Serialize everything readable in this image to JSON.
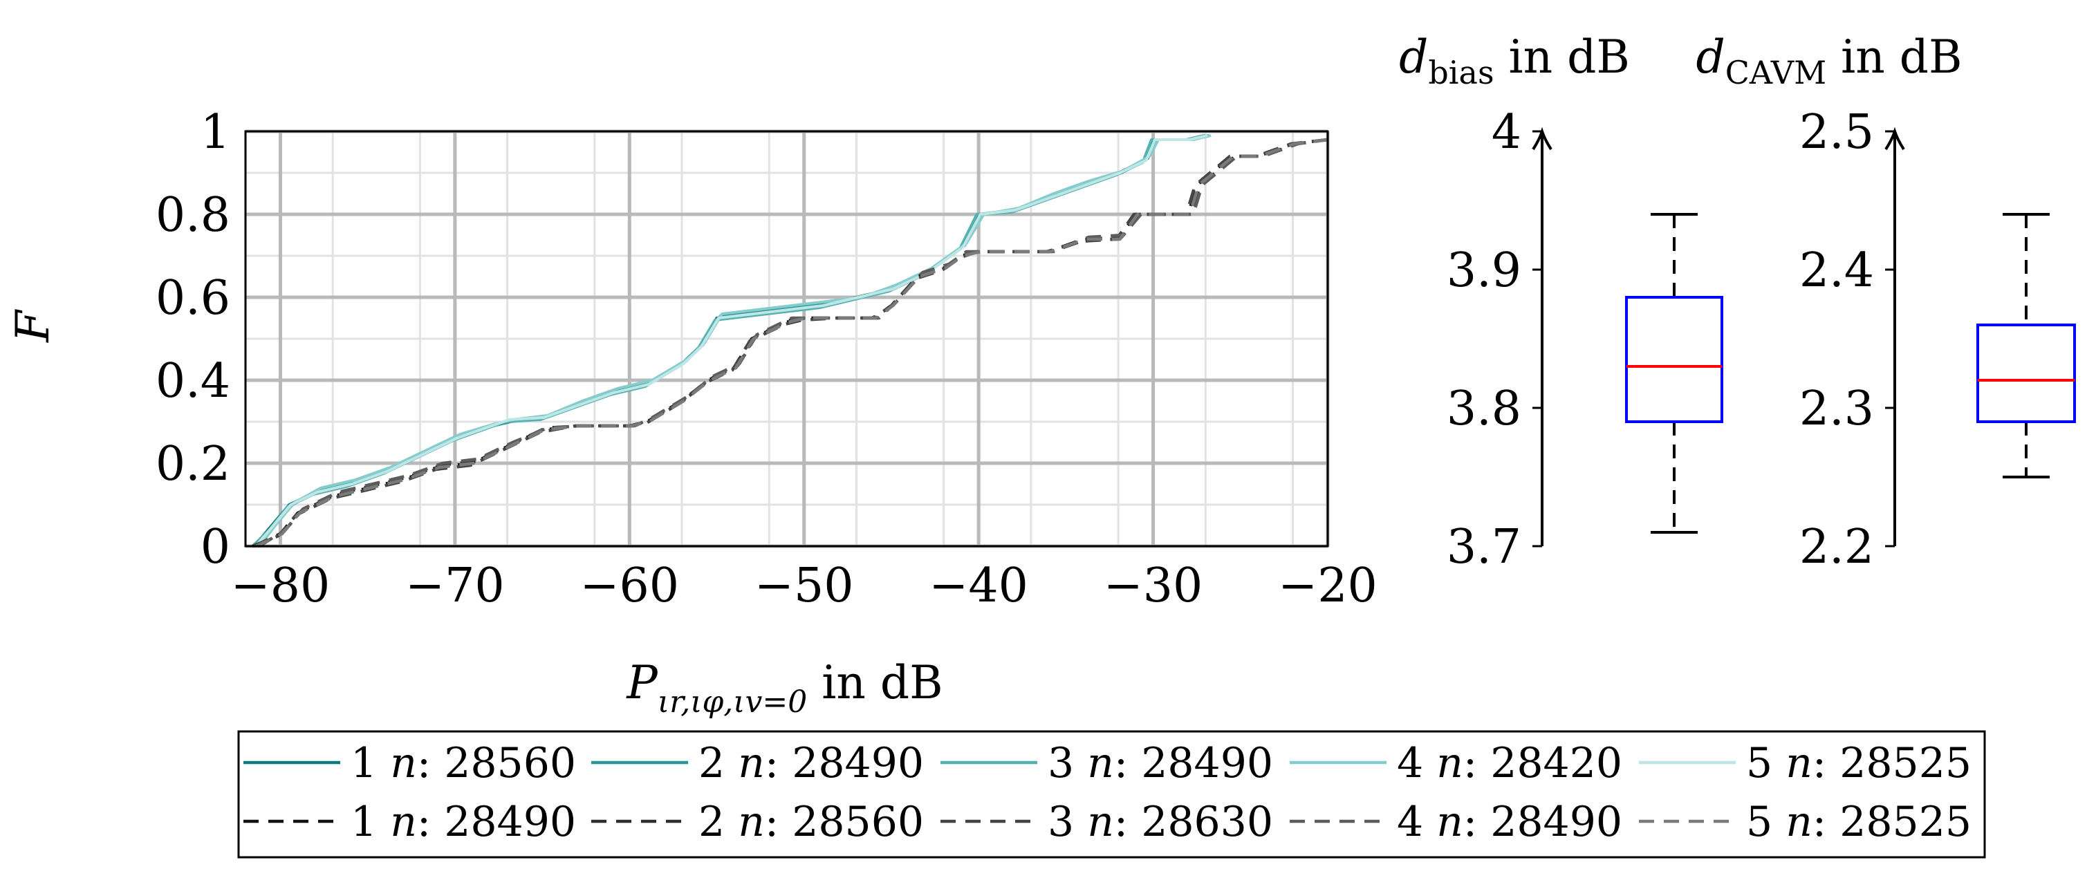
{
  "chart_data": [
    {
      "type": "line",
      "xlabel": "P_{ιr,ιφ,ιv=0} in dB",
      "xlabel_parts": {
        "main": "P",
        "sub": "ιr,ιφ,ιv=0",
        "suffix": " in dB"
      },
      "ylabel": "F",
      "xlim": [
        -82,
        -20
      ],
      "ylim": [
        0,
        1
      ],
      "xticks": [
        -80,
        -70,
        -60,
        -50,
        -40,
        -30,
        -20
      ],
      "xtick_labels": [
        "−80",
        "−70",
        "−60",
        "−50",
        "−40",
        "−30",
        "−20"
      ],
      "yticks": [
        0,
        0.2,
        0.4,
        0.6,
        0.8,
        1
      ],
      "ytick_labels": [
        "0",
        "0.2",
        "0.4",
        "0.6",
        "0.8",
        "1"
      ],
      "grid": true,
      "legend_position": "bottom",
      "series": [
        {
          "name": "1 n: 28560",
          "name_parts": [
            "1 ",
            "n",
            ": 28560"
          ],
          "style": "solid",
          "color": "#0e7a7a",
          "x": [
            -81.5,
            -80.5,
            -79.5,
            -78,
            -76,
            -74,
            -72,
            -70,
            -68,
            -67,
            -65,
            -63,
            -61,
            -59,
            -57,
            -56,
            -55,
            -53,
            -51,
            -49,
            -47,
            -45,
            -43,
            -41,
            -40,
            -38,
            -36,
            -34,
            -32,
            -30.5,
            -30,
            -28,
            -27
          ],
          "y": [
            0,
            0.05,
            0.1,
            0.13,
            0.15,
            0.18,
            0.22,
            0.26,
            0.29,
            0.3,
            0.31,
            0.34,
            0.37,
            0.39,
            0.44,
            0.48,
            0.55,
            0.56,
            0.57,
            0.58,
            0.6,
            0.62,
            0.66,
            0.72,
            0.8,
            0.81,
            0.84,
            0.87,
            0.9,
            0.93,
            0.98,
            0.98,
            0.99
          ]
        },
        {
          "name": "2 n: 28490",
          "name_parts": [
            "2 ",
            "n",
            ": 28490"
          ],
          "style": "solid",
          "color": "#2a9595",
          "x": [
            -81.3,
            -80.3,
            -79.3,
            -77.8,
            -75.8,
            -73.8,
            -71.8,
            -69.8,
            -67.8,
            -66.8,
            -64.8,
            -62.8,
            -60.8,
            -58.8,
            -56.8,
            -55.8,
            -54.8,
            -52.8,
            -50.8,
            -48.8,
            -46.8,
            -44.8,
            -42.8,
            -40.8,
            -39.8,
            -37.8,
            -35.8,
            -33.8,
            -31.8,
            -30.3,
            -29.8,
            -27.8,
            -26.8
          ],
          "y": [
            0,
            0.05,
            0.1,
            0.135,
            0.155,
            0.185,
            0.225,
            0.265,
            0.29,
            0.3,
            0.31,
            0.345,
            0.375,
            0.395,
            0.445,
            0.485,
            0.555,
            0.565,
            0.575,
            0.585,
            0.6,
            0.625,
            0.665,
            0.725,
            0.8,
            0.81,
            0.845,
            0.875,
            0.9,
            0.935,
            0.98,
            0.98,
            0.99
          ]
        },
        {
          "name": "3 n: 28490",
          "name_parts": [
            "3 ",
            "n",
            ": 28490"
          ],
          "style": "solid",
          "color": "#55b0b0",
          "x": [
            -81.6,
            -80.6,
            -79.6,
            -78.1,
            -76.1,
            -74.1,
            -72.1,
            -70.1,
            -68.1,
            -67.1,
            -65.1,
            -63.1,
            -61.1,
            -59.1,
            -57.1,
            -56.1,
            -55.1,
            -53.1,
            -51.1,
            -49.1,
            -47.1,
            -45.1,
            -43.1,
            -41.1,
            -40.1,
            -38.1,
            -36.1,
            -34.1,
            -32.1,
            -30.6,
            -30.1,
            -28.1,
            -27.1
          ],
          "y": [
            0,
            0.04,
            0.095,
            0.125,
            0.145,
            0.175,
            0.215,
            0.255,
            0.285,
            0.3,
            0.305,
            0.335,
            0.365,
            0.385,
            0.435,
            0.475,
            0.545,
            0.555,
            0.565,
            0.575,
            0.595,
            0.615,
            0.655,
            0.715,
            0.8,
            0.805,
            0.835,
            0.865,
            0.895,
            0.925,
            0.98,
            0.98,
            0.99
          ]
        },
        {
          "name": "4 n: 28420",
          "name_parts": [
            "4 ",
            "n",
            ": 28420"
          ],
          "style": "solid",
          "color": "#85cccc",
          "x": [
            -81.2,
            -80.2,
            -79.2,
            -77.7,
            -75.7,
            -73.7,
            -71.7,
            -69.7,
            -67.7,
            -66.7,
            -64.7,
            -62.7,
            -60.7,
            -58.7,
            -56.7,
            -55.7,
            -54.7,
            -52.7,
            -50.7,
            -48.7,
            -46.7,
            -44.7,
            -42.7,
            -40.7,
            -39.7,
            -37.7,
            -35.7,
            -33.7,
            -31.7,
            -30.2,
            -29.7,
            -27.7,
            -26.7
          ],
          "y": [
            0,
            0.055,
            0.105,
            0.14,
            0.16,
            0.19,
            0.23,
            0.27,
            0.295,
            0.305,
            0.315,
            0.35,
            0.38,
            0.4,
            0.45,
            0.49,
            0.56,
            0.57,
            0.58,
            0.59,
            0.6,
            0.63,
            0.67,
            0.73,
            0.8,
            0.815,
            0.85,
            0.88,
            0.905,
            0.94,
            0.98,
            0.98,
            0.99
          ]
        },
        {
          "name": "5 n: 28525",
          "name_parts": [
            "5 ",
            "n",
            ": 28525"
          ],
          "style": "solid",
          "color": "#bfe6e6",
          "x": [
            -81.4,
            -80.4,
            -79.4,
            -77.9,
            -75.9,
            -73.9,
            -71.9,
            -69.9,
            -67.9,
            -66.9,
            -64.9,
            -62.9,
            -60.9,
            -58.9,
            -56.9,
            -55.9,
            -54.9,
            -52.9,
            -50.9,
            -48.9,
            -46.9,
            -44.9,
            -42.9,
            -40.9,
            -39.9,
            -37.9,
            -35.9,
            -33.9,
            -31.9,
            -30.4,
            -29.9,
            -27.9,
            -26.9
          ],
          "y": [
            0,
            0.05,
            0.1,
            0.13,
            0.15,
            0.18,
            0.22,
            0.26,
            0.29,
            0.305,
            0.31,
            0.34,
            0.37,
            0.39,
            0.44,
            0.48,
            0.55,
            0.56,
            0.57,
            0.58,
            0.6,
            0.62,
            0.66,
            0.72,
            0.8,
            0.81,
            0.84,
            0.87,
            0.9,
            0.93,
            0.98,
            0.98,
            0.99
          ]
        },
        {
          "name": "1 n: 28490",
          "name_parts": [
            "1 ",
            "n",
            ": 28490"
          ],
          "style": "dashed",
          "color": "#111111",
          "x": [
            -81.5,
            -80,
            -79,
            -77,
            -75,
            -73,
            -71,
            -69,
            -67,
            -65,
            -63,
            -60,
            -59,
            -57,
            -55.5,
            -54,
            -53,
            -52,
            -51,
            -50,
            -48,
            -46,
            -45,
            -43.5,
            -42,
            -41,
            -40,
            -38,
            -36,
            -34,
            -32,
            -31,
            -30,
            -28,
            -27.5,
            -25.5,
            -24,
            -22,
            -20
          ],
          "y": [
            0,
            0.03,
            0.08,
            0.12,
            0.14,
            0.16,
            0.19,
            0.2,
            0.24,
            0.28,
            0.29,
            0.29,
            0.3,
            0.35,
            0.4,
            0.43,
            0.5,
            0.52,
            0.54,
            0.55,
            0.55,
            0.55,
            0.58,
            0.65,
            0.67,
            0.7,
            0.71,
            0.71,
            0.71,
            0.74,
            0.74,
            0.8,
            0.8,
            0.8,
            0.87,
            0.94,
            0.94,
            0.97,
            0.98
          ]
        },
        {
          "name": "2 n: 28560",
          "name_parts": [
            "2 ",
            "n",
            ": 28560"
          ],
          "style": "dashed",
          "color": "#2e2e2e",
          "x": [
            -81.3,
            -79.8,
            -78.8,
            -76.8,
            -74.8,
            -72.8,
            -70.8,
            -68.8,
            -66.8,
            -64.8,
            -62.8,
            -59.8,
            -58.8,
            -56.8,
            -55.3,
            -53.8,
            -52.8,
            -51.8,
            -50.8,
            -49.8,
            -47.8,
            -45.8,
            -44.8,
            -43.3,
            -41.8,
            -40.8,
            -39.8,
            -37.8,
            -35.8,
            -33.8,
            -31.8,
            -30.8,
            -29.8,
            -27.8,
            -27.3,
            -25.3,
            -23.8,
            -21.8,
            -20
          ],
          "y": [
            0,
            0.035,
            0.085,
            0.125,
            0.145,
            0.165,
            0.195,
            0.205,
            0.245,
            0.285,
            0.29,
            0.29,
            0.305,
            0.355,
            0.405,
            0.435,
            0.505,
            0.525,
            0.545,
            0.55,
            0.55,
            0.55,
            0.585,
            0.655,
            0.675,
            0.705,
            0.71,
            0.71,
            0.71,
            0.74,
            0.745,
            0.8,
            0.8,
            0.8,
            0.87,
            0.94,
            0.94,
            0.97,
            0.98
          ]
        },
        {
          "name": "3 n: 28630",
          "name_parts": [
            "3 ",
            "n",
            ": 28630"
          ],
          "style": "dashed",
          "color": "#454545",
          "x": [
            -81.6,
            -80.1,
            -79.1,
            -77.1,
            -75.1,
            -73.1,
            -71.1,
            -69.1,
            -67.1,
            -65.1,
            -63.1,
            -60.1,
            -59.1,
            -57.1,
            -55.6,
            -54.1,
            -53.1,
            -52.1,
            -51.1,
            -50.1,
            -48.1,
            -46.1,
            -45.1,
            -43.6,
            -42.1,
            -41.1,
            -40.1,
            -38.1,
            -36.1,
            -34.1,
            -32.1,
            -31.1,
            -30.1,
            -28.1,
            -27.6,
            -25.6,
            -24.1,
            -22.1,
            -20
          ],
          "y": [
            0,
            0.025,
            0.075,
            0.115,
            0.135,
            0.155,
            0.185,
            0.195,
            0.235,
            0.275,
            0.29,
            0.29,
            0.295,
            0.345,
            0.395,
            0.425,
            0.495,
            0.515,
            0.535,
            0.545,
            0.55,
            0.55,
            0.575,
            0.645,
            0.665,
            0.695,
            0.71,
            0.71,
            0.71,
            0.735,
            0.74,
            0.8,
            0.8,
            0.8,
            0.87,
            0.94,
            0.94,
            0.97,
            0.98
          ]
        },
        {
          "name": "4 n: 28490",
          "name_parts": [
            "4 ",
            "n",
            ": 28490"
          ],
          "style": "dashed",
          "color": "#5c5c5c",
          "x": [
            -81.2,
            -79.7,
            -78.7,
            -76.7,
            -74.7,
            -72.7,
            -70.7,
            -68.7,
            -66.7,
            -64.7,
            -62.7,
            -59.7,
            -58.7,
            -56.7,
            -55.2,
            -53.7,
            -52.7,
            -51.7,
            -50.7,
            -49.7,
            -47.7,
            -45.7,
            -44.7,
            -43.2,
            -41.7,
            -40.7,
            -39.7,
            -37.7,
            -35.7,
            -33.7,
            -31.7,
            -30.7,
            -29.7,
            -27.7,
            -27.2,
            -25.2,
            -23.7,
            -21.7,
            -20
          ],
          "y": [
            0,
            0.04,
            0.09,
            0.13,
            0.15,
            0.17,
            0.2,
            0.21,
            0.25,
            0.285,
            0.29,
            0.29,
            0.31,
            0.36,
            0.41,
            0.44,
            0.51,
            0.53,
            0.55,
            0.55,
            0.55,
            0.55,
            0.59,
            0.66,
            0.68,
            0.71,
            0.71,
            0.71,
            0.71,
            0.745,
            0.75,
            0.8,
            0.8,
            0.8,
            0.87,
            0.94,
            0.94,
            0.97,
            0.98
          ]
        },
        {
          "name": "5 n: 28525",
          "name_parts": [
            "5 ",
            "n",
            ": 28525"
          ],
          "style": "dashed",
          "color": "#7a7a7a",
          "x": [
            -81.4,
            -79.9,
            -78.9,
            -76.9,
            -74.9,
            -72.9,
            -70.9,
            -68.9,
            -66.9,
            -64.9,
            -62.9,
            -59.9,
            -58.9,
            -56.9,
            -55.4,
            -53.9,
            -52.9,
            -51.9,
            -50.9,
            -49.9,
            -47.9,
            -45.9,
            -44.9,
            -43.4,
            -41.9,
            -40.9,
            -39.9,
            -37.9,
            -35.9,
            -33.9,
            -31.9,
            -30.9,
            -29.9,
            -27.9,
            -27.4,
            -25.4,
            -23.9,
            -21.9,
            -20
          ],
          "y": [
            0,
            0.03,
            0.08,
            0.12,
            0.14,
            0.16,
            0.19,
            0.2,
            0.24,
            0.28,
            0.29,
            0.29,
            0.3,
            0.35,
            0.4,
            0.43,
            0.5,
            0.52,
            0.54,
            0.55,
            0.55,
            0.55,
            0.58,
            0.65,
            0.67,
            0.7,
            0.71,
            0.71,
            0.71,
            0.74,
            0.74,
            0.8,
            0.8,
            0.8,
            0.87,
            0.94,
            0.94,
            0.97,
            0.98
          ]
        }
      ]
    },
    {
      "type": "box",
      "title": "d_bias in dB",
      "title_parts": {
        "main": "d",
        "sub": "bias",
        "suffix": " in dB"
      },
      "ylim": [
        3.7,
        4.0
      ],
      "yticks": [
        3.7,
        3.8,
        3.9,
        4.0
      ],
      "ytick_labels": [
        "3.7",
        "3.8",
        "3.9",
        "4"
      ],
      "whisker_low": 3.71,
      "q1": 3.79,
      "median": 3.83,
      "q3": 3.88,
      "whisker_high": 3.94,
      "box_color": "#0000ff",
      "median_color": "#ff0000"
    },
    {
      "type": "box",
      "title": "d_CAVM in dB",
      "title_parts": {
        "main": "d",
        "sub": "CAVM",
        "suffix": " in dB"
      },
      "ylim": [
        2.2,
        2.5
      ],
      "yticks": [
        2.2,
        2.3,
        2.4,
        2.5
      ],
      "ytick_labels": [
        "2.2",
        "2.3",
        "2.4",
        "2.5"
      ],
      "whisker_low": 2.25,
      "q1": 2.29,
      "median": 2.32,
      "q3": 2.36,
      "whisker_high": 2.44,
      "box_color": "#0000ff",
      "median_color": "#ff0000"
    }
  ]
}
